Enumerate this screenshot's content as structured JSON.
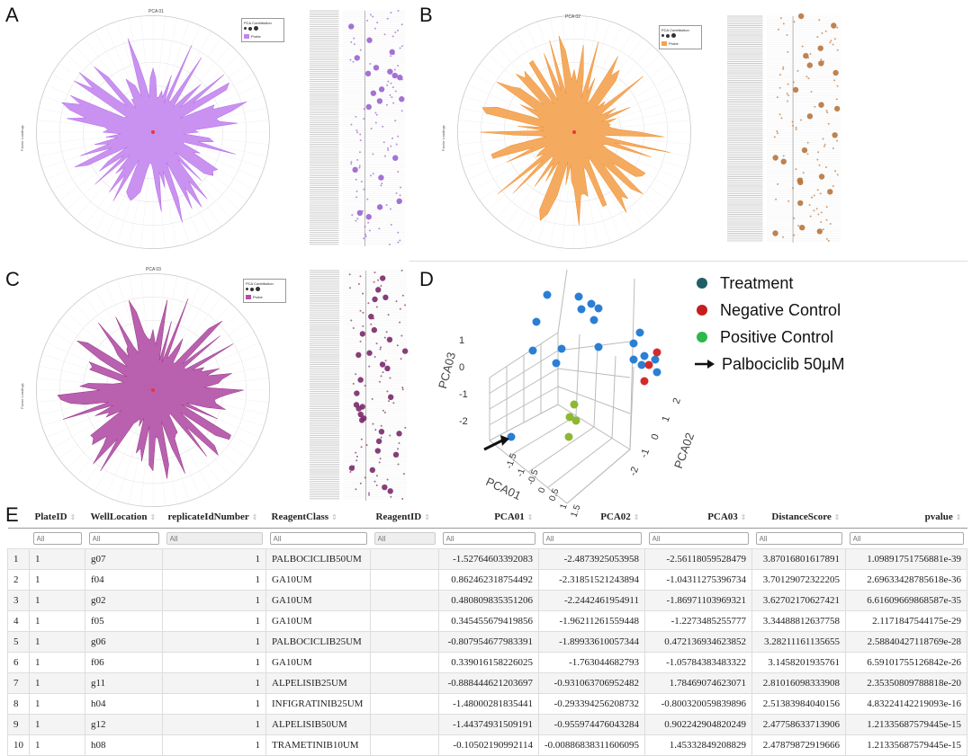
{
  "panels": {
    "A": {
      "letter": "A",
      "title": "PCA 01",
      "ylabel": "Factor Loadings",
      "legend_title": "PCA Contribution",
      "legend_sizes": [
        "0",
        "1",
        "2"
      ],
      "legend_series": "Probe",
      "color": "#c486ee",
      "edge": "#b064e6",
      "dot_color": "#9a63d0"
    },
    "B": {
      "letter": "B",
      "title": "PCA 02",
      "ylabel": "Factor Loadings",
      "legend_title": "PCA Contribution",
      "legend_sizes": [
        "0",
        "1",
        "2"
      ],
      "legend_series": "Probe",
      "color": "#f4a24e",
      "edge": "#ee8a2a",
      "dot_color": "#b8753e"
    },
    "C": {
      "letter": "C",
      "title": "PCA 03",
      "ylabel": "Factor Loadings",
      "legend_title": "PCA Contribution",
      "legend_sizes": [
        "0",
        "1",
        "2"
      ],
      "legend_series": "Probe",
      "color": "#b150a6",
      "edge": "#93307f",
      "dot_color": "#7a2a6a"
    }
  },
  "scatter3d": {
    "letter": "D",
    "axes": {
      "x": "PCA01",
      "y": "PCA02",
      "z": "PCA03"
    },
    "z_ticks": [
      "1",
      "0",
      "-1",
      "-2"
    ],
    "x_ticks": [
      "-1.5",
      "-1",
      "-0.5",
      "0",
      "0.5",
      "1",
      "1.5"
    ],
    "y_ticks": [
      "2",
      "1",
      "0",
      "-1",
      "-2"
    ],
    "legend": [
      {
        "label": "Treatment",
        "color": "#1f5f66",
        "kind": "dot"
      },
      {
        "label": "Negative Control",
        "color": "#c41e1e",
        "kind": "dot"
      },
      {
        "label": "Positive Control",
        "color": "#2db84a",
        "kind": "dot"
      },
      {
        "label": "Palbociclib 50μM",
        "color": "#111111",
        "kind": "arrow"
      }
    ],
    "point_colors": {
      "treatment": "#2a7fd4",
      "negative": "#d22b2b",
      "positive": "#8cb832"
    }
  },
  "table": {
    "letter": "E",
    "columns": [
      {
        "key": "idx",
        "label": "",
        "num": false,
        "filter": ""
      },
      {
        "key": "PlateID",
        "label": "PlateID",
        "num": false,
        "filter": "All"
      },
      {
        "key": "WellLocation",
        "label": "WellLocation",
        "num": false,
        "filter": "All"
      },
      {
        "key": "replicateIdNumber",
        "label": "replicateIdNumber",
        "num": false,
        "filter": "All"
      },
      {
        "key": "ReagentClass",
        "label": "ReagentClass",
        "num": false,
        "filter": "All"
      },
      {
        "key": "ReagentID",
        "label": "ReagentID",
        "num": false,
        "filter": "All"
      },
      {
        "key": "PCA01",
        "label": "PCA01",
        "num": true,
        "filter": "All"
      },
      {
        "key": "PCA02",
        "label": "PCA02",
        "num": true,
        "filter": "All"
      },
      {
        "key": "PCA03",
        "label": "PCA03",
        "num": true,
        "filter": "All"
      },
      {
        "key": "DistanceScore",
        "label": "DistanceScore",
        "num": true,
        "filter": "All"
      },
      {
        "key": "pvalue",
        "label": "pvalue",
        "num": true,
        "filter": "All"
      }
    ],
    "rows": [
      [
        "1",
        "1",
        "g07",
        "1",
        "PALBOCICLIB50UM",
        "",
        "-1.52764603392083",
        "-2.4873925053958",
        "-2.56118059528479",
        "3.87016801617891",
        "1.09891751756881e-39"
      ],
      [
        "2",
        "1",
        "f04",
        "1",
        "GA10UM",
        "",
        "0.862462318754492",
        "-2.31851521243894",
        "-1.04311275396734",
        "3.70129072322205",
        "2.69633428785618e-36"
      ],
      [
        "3",
        "1",
        "g02",
        "1",
        "GA10UM",
        "",
        "0.480809835351206",
        "-2.2442461954911",
        "-1.86971103969321",
        "3.62702170627421",
        "6.61609669868587e-35"
      ],
      [
        "4",
        "1",
        "f05",
        "1",
        "GA10UM",
        "",
        "0.345455679419856",
        "-1.96211261559448",
        "-1.2273485255777",
        "3.34488812637758",
        "2.1171847544175e-29"
      ],
      [
        "5",
        "1",
        "g06",
        "1",
        "PALBOCICLIB25UM",
        "",
        "-0.807954677983391",
        "-1.89933610057344",
        "0.472136934623852",
        "3.28211161135655",
        "2.58840427118769e-28"
      ],
      [
        "6",
        "1",
        "f06",
        "1",
        "GA10UM",
        "",
        "0.339016158226025",
        "-1.763044682793",
        "-1.05784383483322",
        "3.1458201935761",
        "6.59101755126842e-26"
      ],
      [
        "7",
        "1",
        "g11",
        "1",
        "ALPELISIB25UM",
        "",
        "-0.888444621203697",
        "-0.931063706952482",
        "1.78469074623071",
        "2.81016098333908",
        "2.35350809788818e-20"
      ],
      [
        "8",
        "1",
        "h04",
        "1",
        "INFIGRATINIB25UM",
        "",
        "-1.48000281835441",
        "-0.293394256208732",
        "-0.800320059839896",
        "2.51383984040156",
        "4.83224142219093e-16"
      ],
      [
        "9",
        "1",
        "g12",
        "1",
        "ALPELISIB50UM",
        "",
        "-1.44374931509191",
        "-0.955974476043284",
        "0.902242904820249",
        "2.47758633713906",
        "1.21335687579445e-15"
      ],
      [
        "10",
        "1",
        "h08",
        "1",
        "TRAMETINIB10UM",
        "",
        "-0.10502190992114",
        "-0.00886838311606095",
        "1.45332849208829",
        "2.47879872919666",
        "1.21335687579445e-15"
      ]
    ]
  }
}
